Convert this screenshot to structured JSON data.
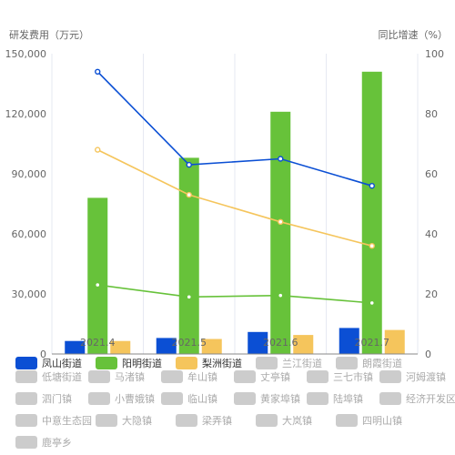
{
  "chart_data": {
    "type": "bar",
    "y_left_title": "研发费用（万元）",
    "y_right_title": "同比增速（%）",
    "categories": [
      "2021.4",
      "2021.5",
      "2021.6",
      "2021.7"
    ],
    "y_left_ticks": [
      "0",
      "30,000",
      "60,000",
      "90,000",
      "120,000",
      "150,000"
    ],
    "y_right_ticks": [
      "0",
      "20",
      "40",
      "60",
      "80",
      "100"
    ],
    "y_left_lim": [
      0,
      150000
    ],
    "y_right_lim": [
      0,
      100
    ],
    "grid": "vertical",
    "legend_position": "bottom",
    "bar_series": [
      {
        "name": "凤山街道",
        "color": "#0b4fd4",
        "values": [
          6500,
          8000,
          11000,
          13000
        ]
      },
      {
        "name": "阳明街道",
        "color": "#67c23a",
        "values": [
          78000,
          98000,
          121000,
          141000
        ]
      },
      {
        "name": "梨洲街道",
        "color": "#f5c55c",
        "values": [
          6500,
          7500,
          9500,
          12000
        ]
      }
    ],
    "line_series": [
      {
        "name": "凤山街道",
        "color": "#0b4fd4",
        "values": [
          94,
          63,
          65,
          56
        ]
      },
      {
        "name": "阳明街道",
        "color": "#67c23a",
        "values": [
          23,
          19,
          19.5,
          17
        ]
      },
      {
        "name": "梨洲街道",
        "color": "#f5c55c",
        "values": [
          68,
          53,
          44,
          36
        ]
      }
    ],
    "legend": [
      {
        "name": "凤山街道",
        "color": "#0b4fd4",
        "active": true
      },
      {
        "name": "阳明街道",
        "color": "#67c23a",
        "active": true
      },
      {
        "name": "梨洲街道",
        "color": "#f5c55c",
        "active": true
      },
      {
        "name": "兰江街道",
        "color": "#cccccc",
        "active": false
      },
      {
        "name": "朗霞街道",
        "color": "#cccccc",
        "active": false
      },
      {
        "name": "低塘街道",
        "color": "#cccccc",
        "active": false
      },
      {
        "name": "马渚镇",
        "color": "#cccccc",
        "active": false
      },
      {
        "name": "牟山镇",
        "color": "#cccccc",
        "active": false
      },
      {
        "name": "丈亭镇",
        "color": "#cccccc",
        "active": false
      },
      {
        "name": "三七市镇",
        "color": "#cccccc",
        "active": false
      },
      {
        "name": "河姆渡镇",
        "color": "#cccccc",
        "active": false
      },
      {
        "name": "泗门镇",
        "color": "#cccccc",
        "active": false
      },
      {
        "name": "小曹娥镇",
        "color": "#cccccc",
        "active": false
      },
      {
        "name": "临山镇",
        "color": "#cccccc",
        "active": false
      },
      {
        "name": "黄家埠镇",
        "color": "#cccccc",
        "active": false
      },
      {
        "name": "陆埠镇",
        "color": "#cccccc",
        "active": false
      },
      {
        "name": "经济开发区",
        "color": "#cccccc",
        "active": false
      },
      {
        "name": "中意生态园",
        "color": "#cccccc",
        "active": false
      },
      {
        "name": "大隐镇",
        "color": "#cccccc",
        "active": false
      },
      {
        "name": "梁弄镇",
        "color": "#cccccc",
        "active": false
      },
      {
        "name": "大岚镇",
        "color": "#cccccc",
        "active": false
      },
      {
        "name": "四明山镇",
        "color": "#cccccc",
        "active": false
      },
      {
        "name": "鹿亭乡",
        "color": "#cccccc",
        "active": false
      }
    ]
  }
}
